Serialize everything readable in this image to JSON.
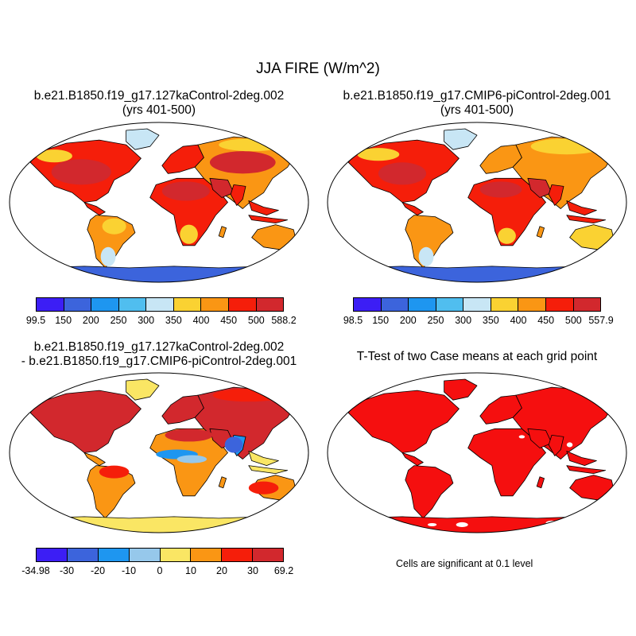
{
  "title": "JJA FIRE (W/m^2)",
  "panels": [
    {
      "title_line1": "b.e21.B1850.f19_g17.127kaControl-2deg.002",
      "title_line2": "(yrs 401-500)",
      "colorbar_labels": [
        "99.5",
        "150",
        "200",
        "250",
        "300",
        "350",
        "400",
        "450",
        "500",
        "588.2"
      ]
    },
    {
      "title_line1": "b.e21.B1850.f19_g17.CMIP6-piControl-2deg.001",
      "title_line2": "(yrs 401-500)",
      "colorbar_labels": [
        "98.5",
        "150",
        "200",
        "250",
        "300",
        "350",
        "400",
        "450",
        "500",
        "557.9"
      ]
    },
    {
      "title_line1": "b.e21.B1850.f19_g17.127kaControl-2deg.002",
      "title_line2": "- b.e21.B1850.f19_g17.CMIP6-piControl-2deg.001",
      "colorbar_labels": [
        "-34.98",
        "-30",
        "-20",
        "-10",
        "0",
        "10",
        "20",
        "30",
        "69.2"
      ]
    },
    {
      "title_line1": "T-Test of two Case means at each grid point",
      "note": "Cells are significant at 0.1 level"
    }
  ],
  "colors": {
    "abs_scale": [
      "#3c1ef5",
      "#3c64dc",
      "#1e96f0",
      "#50beef",
      "#c8e6f5",
      "#fad232",
      "#fa9614",
      "#f51e0a",
      "#d2282d"
    ],
    "diff_scale": [
      "#3c1ef5",
      "#3c64dc",
      "#1e96f0",
      "#96c8eb",
      "#fae664",
      "#fa9614",
      "#f51e0a",
      "#d2282d"
    ],
    "significant": "#f50f0f",
    "ocean": "#ffffff",
    "coast": "#000000"
  }
}
